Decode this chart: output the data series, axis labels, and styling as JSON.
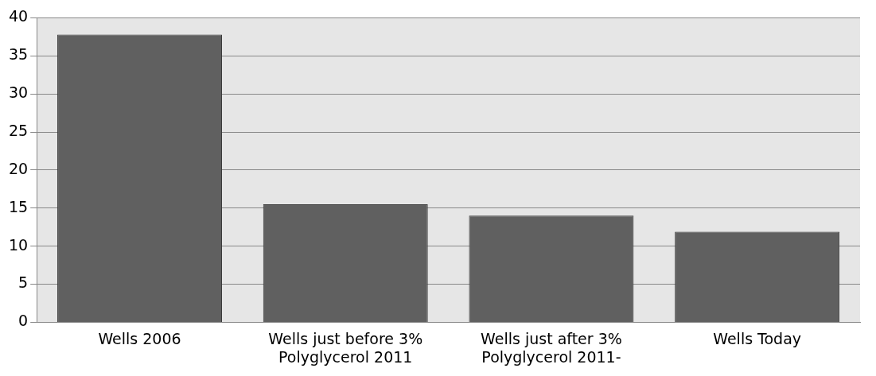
{
  "chart_data": {
    "type": "bar",
    "categories": [
      "Wells 2006",
      "Wells just before 3% Polyglycerol 2011",
      "Wells just after 3% Polyglycerol 2011-",
      "Wells Today"
    ],
    "values": [
      37.8,
      15.5,
      14,
      11.9
    ],
    "color": "#606060",
    "ylim": [
      0,
      40
    ],
    "yticks": [
      0,
      5,
      10,
      15,
      20,
      25,
      30,
      35,
      40
    ],
    "grid": "y",
    "legend": false
  }
}
